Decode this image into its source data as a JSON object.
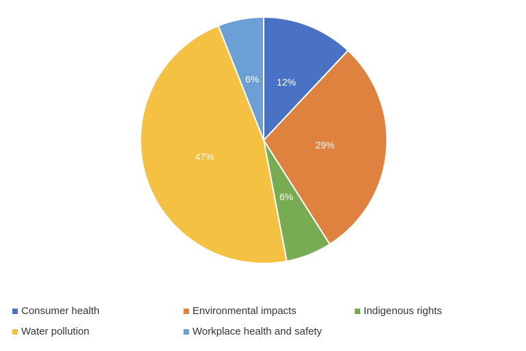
{
  "chart_data": {
    "type": "pie",
    "categories": [
      "Consumer health",
      "Environmental impacts",
      "Indigenous rights",
      "Water pollution",
      "Workplace health and safety"
    ],
    "values": [
      12,
      29,
      6,
      47,
      6
    ],
    "value_labels": [
      "12%",
      "29%",
      "6%",
      "47%",
      "6%"
    ],
    "colors": [
      "#4a72c4",
      "#e0823f",
      "#77ac52",
      "#f4c142",
      "#6b9fd6"
    ]
  }
}
